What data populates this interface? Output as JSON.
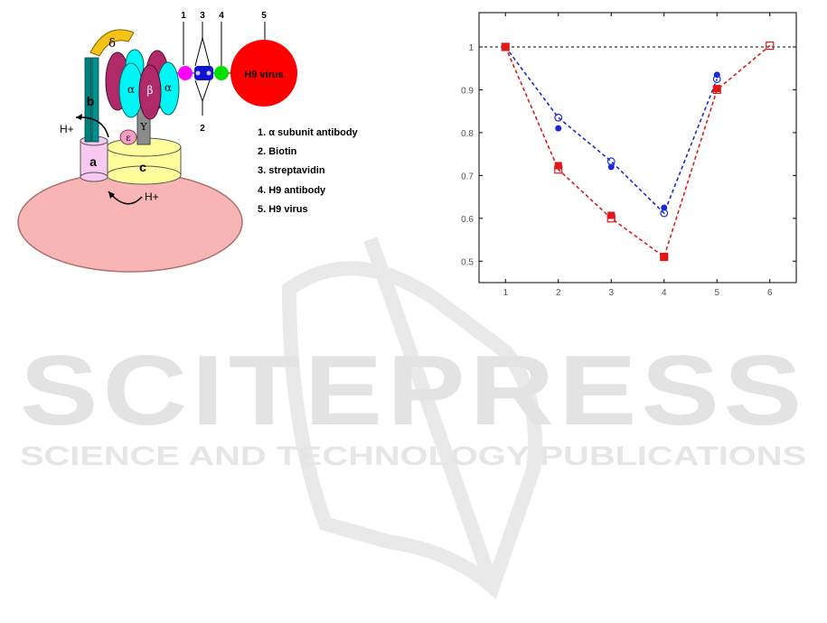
{
  "diagram": {
    "subunits": {
      "a": "a",
      "b": "b",
      "c": "c",
      "delta": "δ",
      "alpha_left": "α",
      "beta": "β",
      "alpha_right": "α",
      "gamma": "Υ",
      "epsilon": "ε"
    },
    "proton_labels": [
      "H+",
      "H+"
    ],
    "numbers": [
      "1",
      "3",
      "4",
      "5",
      "2"
    ],
    "virus_label": "H9 virus",
    "legend": [
      "1. α  subunit antibody",
      "2. Biotin",
      "3. streptavidin",
      "4. H9 antibody",
      "5. H9 virus"
    ],
    "colors": {
      "membrane": "#f7b5b5",
      "subunit_a": "#f9c8f0",
      "subunit_c": "#fdfd9c",
      "subunit_b": "#007f7f",
      "delta": "#f5c215",
      "alpha": "#00f5f5",
      "beta": "#b02a6a",
      "gamma": "#8c8c8c",
      "epsilon": "#f49ec5",
      "biotin": "#ff00ff",
      "streptavidin": "#1010d0",
      "h9_antibody": "#00e000",
      "virus": "#ff0000"
    }
  },
  "chart_data": {
    "type": "scatter",
    "title": "",
    "xlabel": "",
    "ylabel": "",
    "xlim": [
      0.5,
      6.5
    ],
    "ylim": [
      0.45,
      1.08
    ],
    "x_ticks": [
      1,
      2,
      3,
      4,
      5,
      6
    ],
    "y_ticks": [
      0.5,
      0.6,
      0.7,
      0.8,
      0.9,
      1
    ],
    "reference_line": 1,
    "grid": false,
    "series": [
      {
        "color": "#1a2ad6",
        "marker": "filled-circle",
        "x": [
          1,
          2,
          3,
          4,
          5
        ],
        "y": [
          1.0,
          0.81,
          0.72,
          0.625,
          0.935
        ],
        "line": false
      },
      {
        "color": "#1a2ad6",
        "marker": "open-circle",
        "x": [
          1,
          2,
          3,
          4,
          5
        ],
        "y": [
          1.0,
          0.835,
          0.733,
          0.612,
          0.925
        ],
        "line": "dashed"
      },
      {
        "color": "#e01818",
        "marker": "filled-square",
        "x": [
          1,
          2,
          3,
          4,
          5
        ],
        "y": [
          1.0,
          0.723,
          0.607,
          0.51,
          0.903
        ],
        "line": false
      },
      {
        "color": "#e01818",
        "marker": "open-square",
        "x": [
          1,
          2,
          3,
          4,
          5,
          6
        ],
        "y": [
          1.0,
          0.714,
          0.6,
          0.51,
          0.9,
          1.003
        ],
        "line": "dashed"
      }
    ]
  },
  "watermark": {
    "title": "SCITEPRESS",
    "subtitle": "SCIENCE AND TECHNOLOGY PUBLICATIONS"
  }
}
